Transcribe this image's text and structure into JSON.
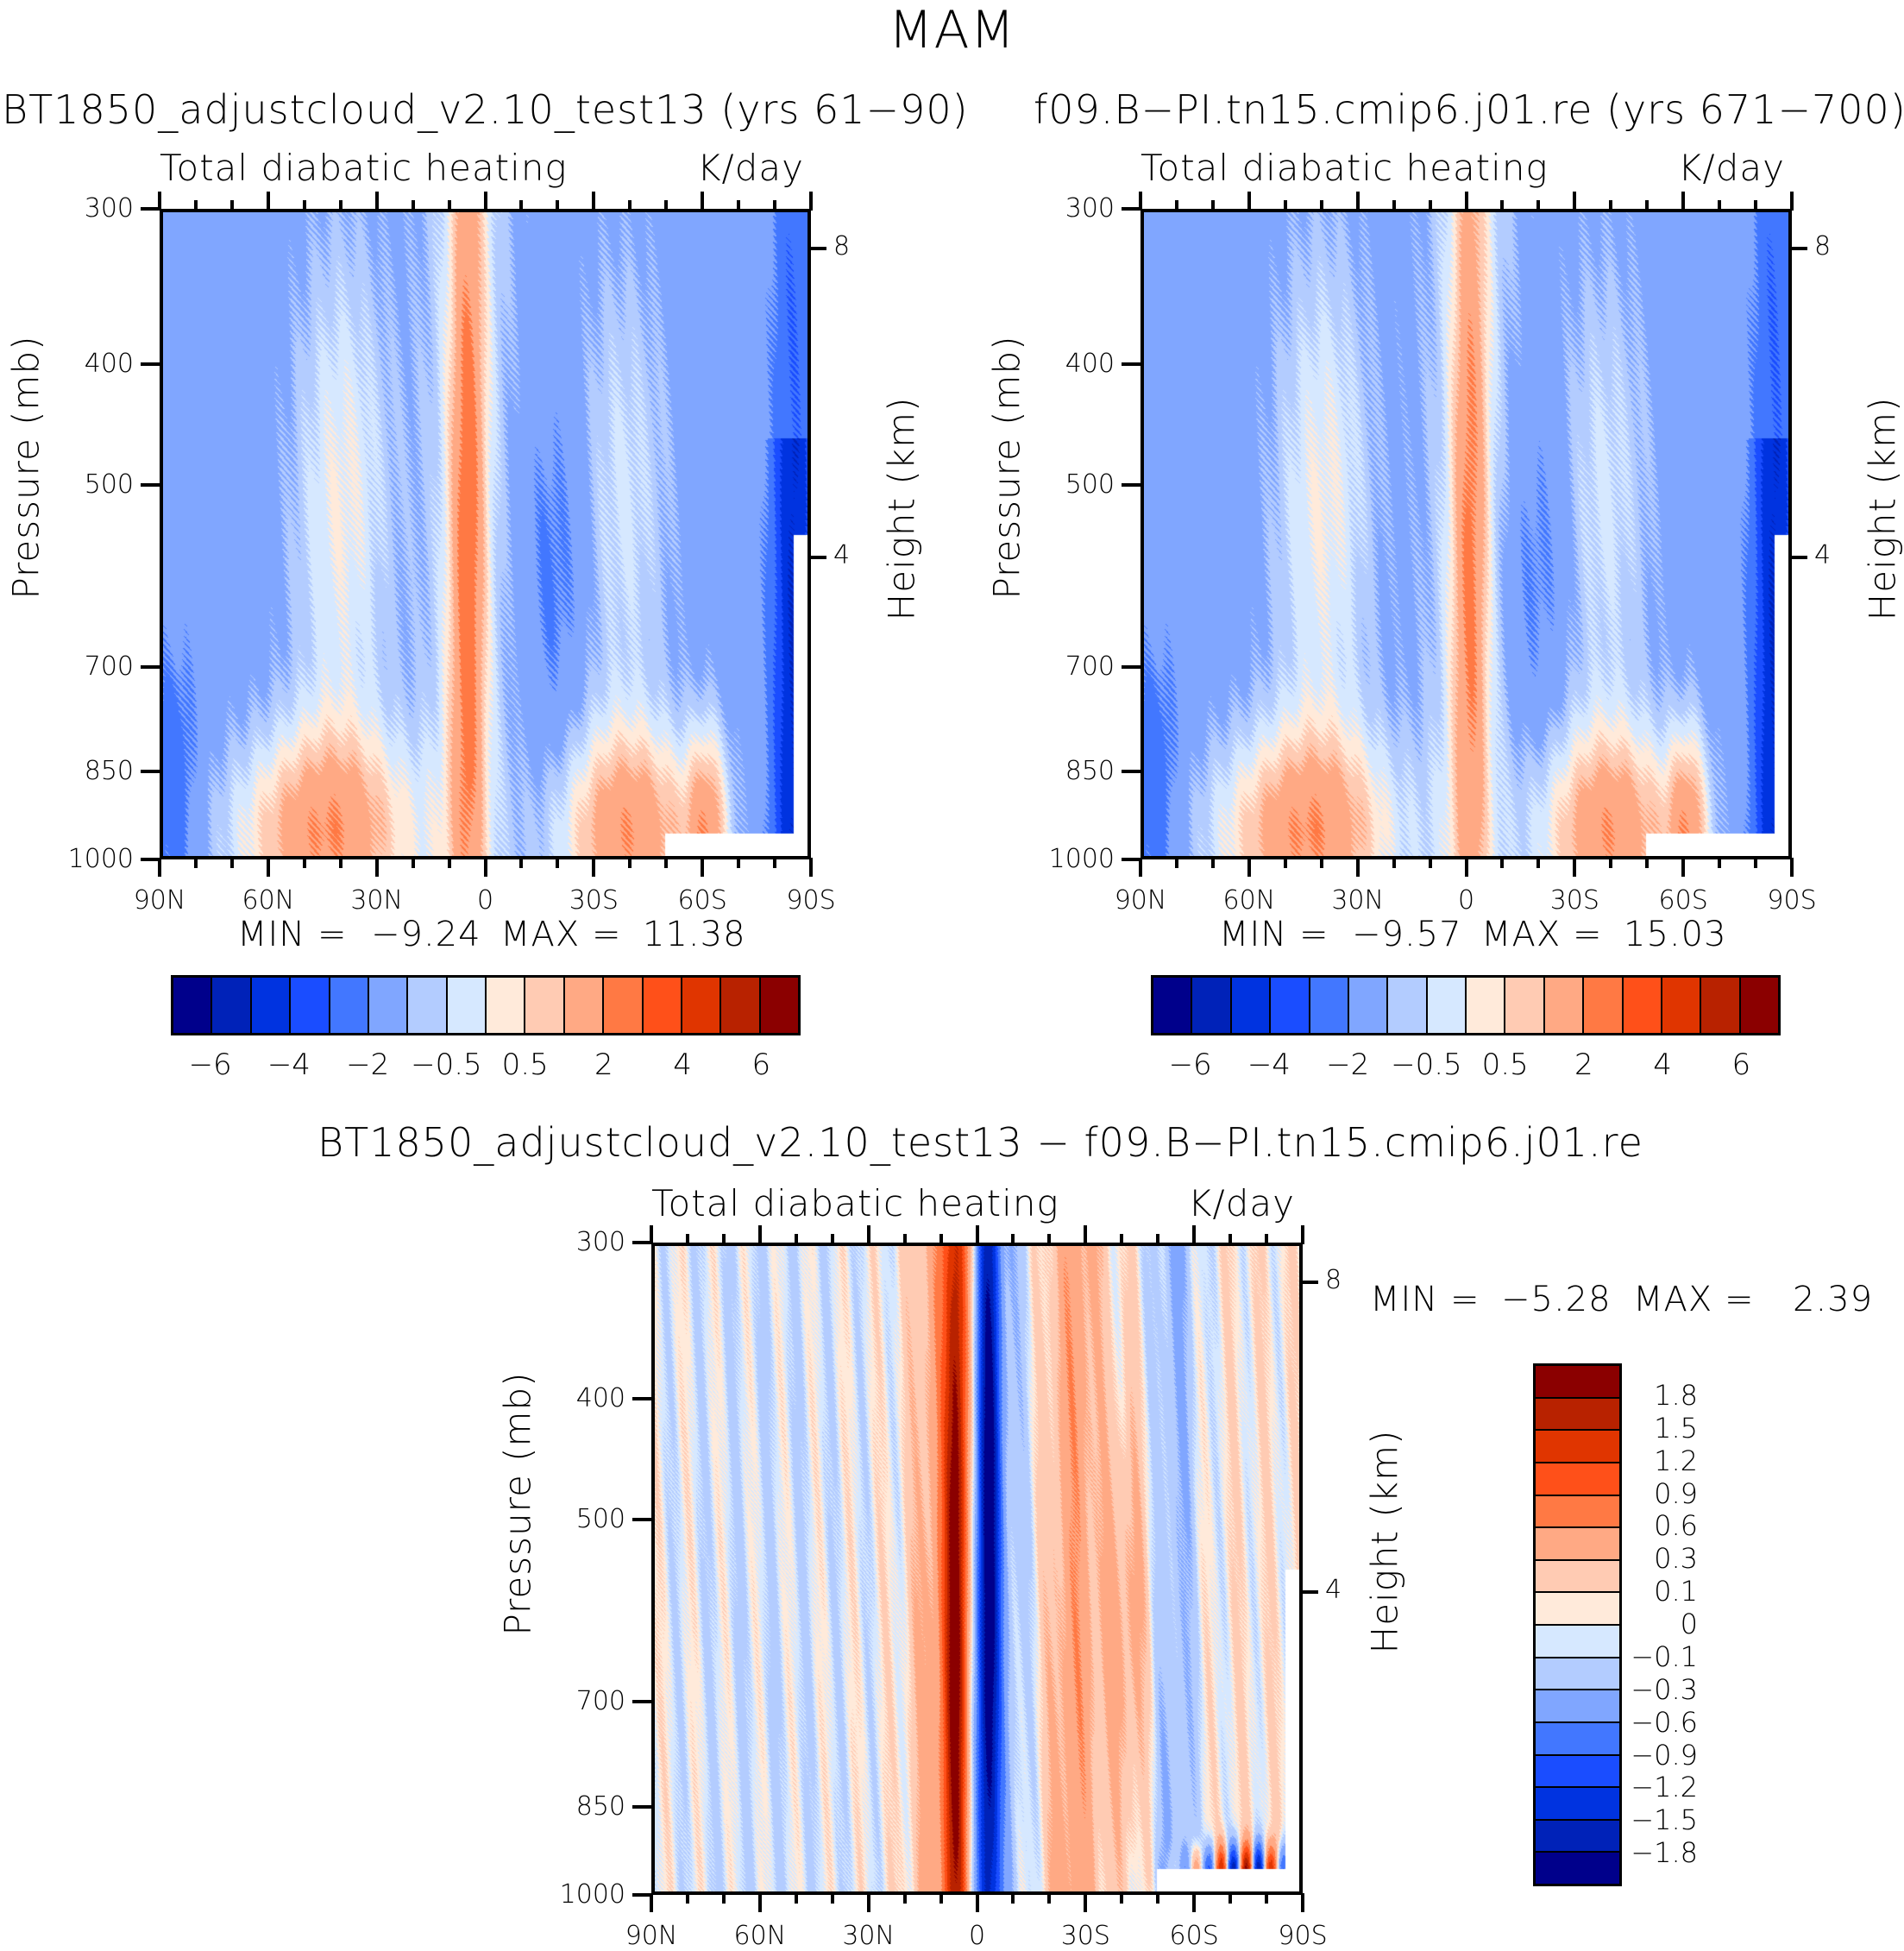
{
  "figure": {
    "title": "MAM"
  },
  "palette": [
    "#00008b",
    "#0022b8",
    "#0033e0",
    "#1a4dff",
    "#4277ff",
    "#80a6ff",
    "#b3ccff",
    "#d6e8ff",
    "#ffeada",
    "#ffcbb3",
    "#ffa984",
    "#ff7944",
    "#ff5019",
    "#e03500",
    "#b82200",
    "#8b0000"
  ],
  "chart_data": [
    {
      "type": "heatmap",
      "panel": "top-left",
      "run_title": "BT1850_adjustcloud_v2.10_test13 (yrs 61−90)",
      "subtitle_left": "Total diabatic heating",
      "subtitle_right": "K/day",
      "xlabel": "",
      "ylabel": "Pressure (mb)",
      "ylabel_right": "Height (km)",
      "x_ticks": [
        "90N",
        "60N",
        "30N",
        "0",
        "30S",
        "60S",
        "90S"
      ],
      "y_ticks": [
        "300",
        "400",
        "500",
        "700",
        "850",
        "1000"
      ],
      "y_ticks_right": [
        "8",
        "4"
      ],
      "xlim": [
        "90N",
        "90S"
      ],
      "ylim": [
        1000,
        300
      ],
      "min_label": "MIN =",
      "min_value": "−9.24",
      "max_label": "MAX =",
      "max_value": "11.38",
      "min": -9.24,
      "max": 11.38,
      "contour_levels": [
        -7,
        -6,
        -5,
        -4,
        -3,
        -2,
        -1,
        -0.5,
        0,
        0.5,
        1,
        2,
        3,
        4,
        5,
        6,
        7
      ],
      "colorbar_labels": [
        "−6",
        "−4",
        "−2",
        "−0.5",
        "0.5",
        "2",
        "4",
        "6"
      ],
      "features": [
        {
          "desc": "equatorial deep heating column near 5N",
          "lat": 5,
          "value": 3.5
        },
        {
          "desc": "low-level heating 60N-30N",
          "lat": 45,
          "value": 2
        },
        {
          "desc": "low-level heating 30S-50S",
          "lat": -40,
          "value": 2
        },
        {
          "desc": "Antarctic cooling",
          "lat": -85,
          "value": -4
        }
      ]
    },
    {
      "type": "heatmap",
      "panel": "top-right",
      "run_title": "f09.B−PI.tn15.cmip6.j01.re (yrs 671−700)",
      "subtitle_left": "Total diabatic heating",
      "subtitle_right": "K/day",
      "xlabel": "",
      "ylabel": "Pressure (mb)",
      "ylabel_right": "Height (km)",
      "x_ticks": [
        "90N",
        "60N",
        "30N",
        "0",
        "30S",
        "60S",
        "90S"
      ],
      "y_ticks": [
        "300",
        "400",
        "500",
        "700",
        "850",
        "1000"
      ],
      "y_ticks_right": [
        "8",
        "4"
      ],
      "xlim": [
        "90N",
        "90S"
      ],
      "ylim": [
        1000,
        300
      ],
      "min_label": "MIN =",
      "min_value": "−9.57",
      "max_label": "MAX =",
      "max_value": "15.03",
      "min": -9.57,
      "max": 15.03,
      "contour_levels": [
        -7,
        -6,
        -5,
        -4,
        -3,
        -2,
        -1,
        -0.5,
        0,
        0.5,
        1,
        2,
        3,
        4,
        5,
        6,
        7
      ],
      "colorbar_labels": [
        "−6",
        "−4",
        "−2",
        "−0.5",
        "0.5",
        "2",
        "4",
        "6"
      ],
      "features": [
        {
          "desc": "equatorial deep heating column near 0-5S",
          "lat": -1,
          "value": 3
        },
        {
          "desc": "low-level heating 60N-30N",
          "lat": 45,
          "value": 2
        },
        {
          "desc": "low-level heating 30S-50S",
          "lat": -40,
          "value": 2
        },
        {
          "desc": "Antarctic cooling",
          "lat": -85,
          "value": -4
        }
      ]
    },
    {
      "type": "heatmap",
      "panel": "bottom",
      "run_title": "BT1850_adjustcloud_v2.10_test13 − f09.B−PI.tn15.cmip6.j01.re",
      "subtitle_left": "Total diabatic heating",
      "subtitle_right": "K/day",
      "xlabel": "",
      "ylabel": "Pressure (mb)",
      "ylabel_right": "Height (km)",
      "x_ticks": [
        "90N",
        "60N",
        "30N",
        "0",
        "30S",
        "60S",
        "90S"
      ],
      "y_ticks": [
        "300",
        "400",
        "500",
        "700",
        "850",
        "1000"
      ],
      "y_ticks_right": [
        "8",
        "4"
      ],
      "xlim": [
        "90N",
        "90S"
      ],
      "ylim": [
        1000,
        300
      ],
      "min_label": "MIN =",
      "min_value": "−5.28",
      "max_label": "MAX =",
      "max_value": "2.39",
      "min": -5.28,
      "max": 2.39,
      "contour_levels": [
        -2.1,
        -1.8,
        -1.5,
        -1.2,
        -0.9,
        -0.6,
        -0.3,
        -0.1,
        0,
        0.1,
        0.3,
        0.6,
        0.9,
        1.2,
        1.5,
        1.8,
        2.1
      ],
      "colorbar_labels": [
        "1.8",
        "1.5",
        "1.2",
        "0.9",
        "0.6",
        "0.3",
        "0.1",
        "0",
        "−0.1",
        "−0.3",
        "−0.6",
        "−0.9",
        "−1.2",
        "−1.5",
        "−1.8"
      ],
      "features": [
        {
          "desc": "positive anomaly column near 5N",
          "lat": 6,
          "value": 1.4
        },
        {
          "desc": "negative anomaly column near 2S",
          "lat": -3,
          "value": -1.5
        },
        {
          "desc": "weak positive 15S-45S",
          "lat": -30,
          "value": 0.4
        },
        {
          "desc": "weak negative 40S-60S",
          "lat": -55,
          "value": -0.3
        }
      ]
    }
  ]
}
